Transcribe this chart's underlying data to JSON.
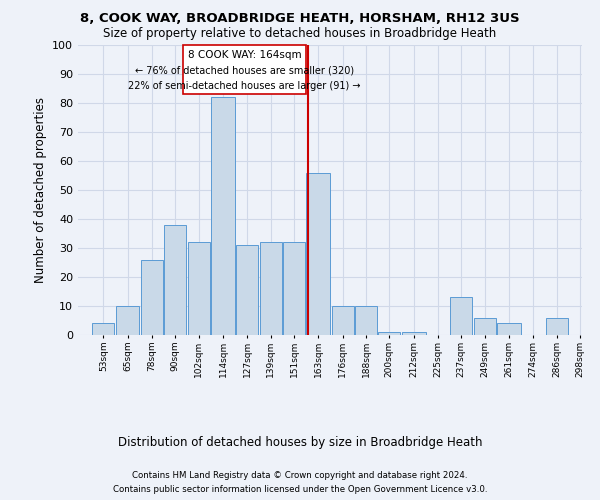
{
  "title1": "8, COOK WAY, BROADBRIDGE HEATH, HORSHAM, RH12 3US",
  "title2": "Size of property relative to detached houses in Broadbridge Heath",
  "xlabel": "Distribution of detached houses by size in Broadbridge Heath",
  "ylabel": "Number of detached properties",
  "footnote1": "Contains HM Land Registry data © Crown copyright and database right 2024.",
  "footnote2": "Contains public sector information licensed under the Open Government Licence v3.0.",
  "annotation_title": "8 COOK WAY: 164sqm",
  "annotation_line1": "← 76% of detached houses are smaller (320)",
  "annotation_line2": "22% of semi-detached houses are larger (91) →",
  "subject_value": 164,
  "bar_edges": [
    53,
    65,
    78,
    90,
    102,
    114,
    127,
    139,
    151,
    163,
    176,
    188,
    200,
    212,
    225,
    237,
    249,
    261,
    274,
    286,
    298
  ],
  "bar_heights": [
    4,
    10,
    26,
    38,
    32,
    82,
    31,
    32,
    32,
    56,
    10,
    10,
    1,
    1,
    0,
    13,
    6,
    4,
    0,
    6,
    0
  ],
  "bar_fill": "#c9d9e8",
  "bar_edge": "#5b9bd5",
  "vline_color": "#cc0000",
  "box_edge_color": "#cc0000",
  "box_fill": "white",
  "grid_color": "#d0d8e8",
  "bg_color": "#eef2f9",
  "ylim": [
    0,
    100
  ],
  "yticks": [
    0,
    10,
    20,
    30,
    40,
    50,
    60,
    70,
    80,
    90,
    100
  ]
}
